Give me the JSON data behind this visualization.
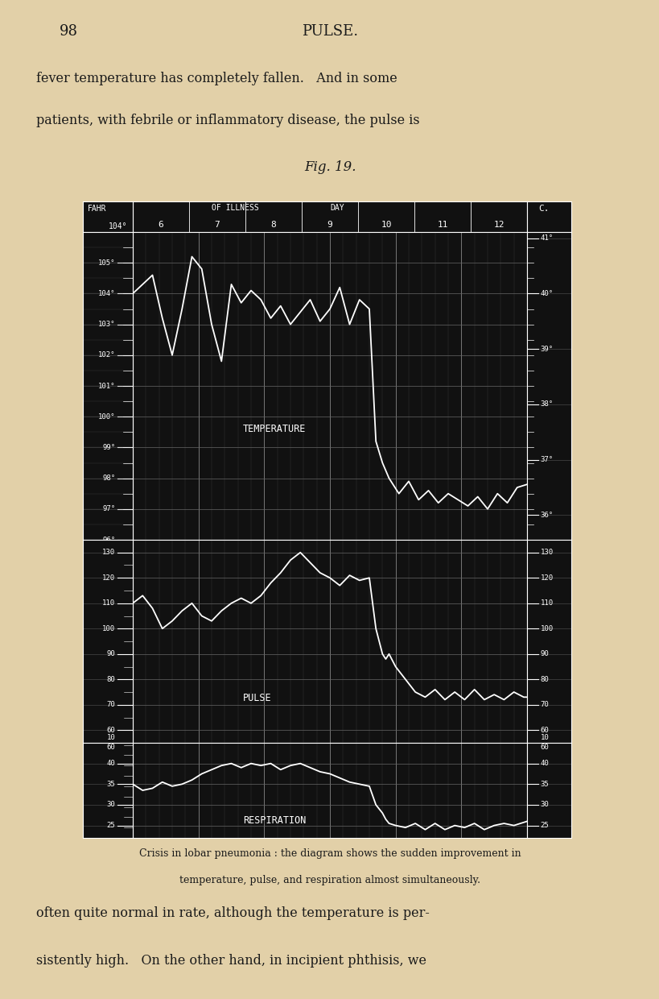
{
  "page_bg": "#e2d0a8",
  "chart_bg": "#111111",
  "line_color": "#ffffff",
  "text_color_page": "#1a1a1a",
  "page_number": "98",
  "page_header": "PULSE.",
  "fig_title": "Fig. 19.",
  "caption_line1": "Crisis in lobar pneumonia : the diagram shows the sudden improvement in",
  "caption_line2": "temperature, pulse, and respiration almost simultaneously.",
  "body_text1": "fever temperature has completely fallen.   And in some",
  "body_text2": "patients, with febrile or inflammatory disease, the pulse is",
  "body_text3": "often quite normal in rate, although the temperature is per-",
  "body_text4": "sistently high.   On the other hand, in incipient phthisis, we",
  "col_labels": [
    "6",
    "7",
    "8",
    "9",
    "10",
    "11",
    "12"
  ],
  "col_header": "DAY  OF ILLNESS",
  "fahr_label": "FAHR",
  "fahr_104": "104°",
  "c_label": "C.",
  "temp_label": "TEMPERATURE",
  "pulse_label": "PULSE",
  "resp_label": "RESPIRATION",
  "temp_yticks": [
    96,
    97,
    98,
    99,
    100,
    101,
    102,
    103,
    104,
    105
  ],
  "temp_ylabels": [
    "96°",
    "97°",
    "98°",
    "99°",
    "100°",
    "101°",
    "102°",
    "103°",
    "104°",
    "105°"
  ],
  "temp_c_ticks": [
    96.8,
    98.6,
    100.4,
    102.2,
    104.0,
    105.8
  ],
  "temp_c_labels": [
    "36°",
    "37°",
    "38°",
    "39°",
    "40°",
    "41°"
  ],
  "pulse_yticks": [
    60,
    70,
    80,
    90,
    100,
    110,
    120,
    130
  ],
  "pulse_ylabels": [
    "60",
    "70",
    "80",
    "90",
    "100",
    "110",
    "120",
    "130"
  ],
  "resp_yticks": [
    25,
    30,
    35,
    40
  ],
  "resp_ylabels": [
    "25",
    "30",
    "35",
    "40"
  ],
  "resp_extra_ticks": [
    10,
    60
  ],
  "temp_data_x": [
    6.0,
    6.15,
    6.3,
    6.45,
    6.6,
    6.75,
    6.9,
    7.05,
    7.2,
    7.35,
    7.5,
    7.65,
    7.8,
    7.95,
    8.1,
    8.25,
    8.4,
    8.55,
    8.7,
    8.85,
    9.0,
    9.15,
    9.3,
    9.45,
    9.6,
    9.7,
    9.8,
    9.9,
    10.05,
    10.2,
    10.35,
    10.5,
    10.65,
    10.8,
    10.95,
    11.1,
    11.25,
    11.4,
    11.55,
    11.7,
    11.85,
    12.0
  ],
  "temp_data_y": [
    104.0,
    104.3,
    104.6,
    103.2,
    102.0,
    103.5,
    105.2,
    104.8,
    103.0,
    101.8,
    104.3,
    103.7,
    104.1,
    103.8,
    103.2,
    103.6,
    103.0,
    103.4,
    103.8,
    103.1,
    103.5,
    104.2,
    103.0,
    103.8,
    103.5,
    99.2,
    98.5,
    98.0,
    97.5,
    97.9,
    97.3,
    97.6,
    97.2,
    97.5,
    97.3,
    97.1,
    97.4,
    97.0,
    97.5,
    97.2,
    97.7,
    97.8
  ],
  "pulse_data_x": [
    6.0,
    6.15,
    6.3,
    6.45,
    6.6,
    6.75,
    6.9,
    7.05,
    7.2,
    7.35,
    7.5,
    7.65,
    7.8,
    7.95,
    8.1,
    8.25,
    8.4,
    8.55,
    8.7,
    8.85,
    9.0,
    9.15,
    9.3,
    9.45,
    9.6,
    9.7,
    9.8,
    9.85,
    9.9,
    10.0,
    10.15,
    10.3,
    10.45,
    10.6,
    10.75,
    10.9,
    11.05,
    11.2,
    11.35,
    11.5,
    11.65,
    11.8,
    11.95,
    12.0
  ],
  "pulse_data_y": [
    110.0,
    113.0,
    108.0,
    100.0,
    103.0,
    107.0,
    110.0,
    105.0,
    103.0,
    107.0,
    110.0,
    112.0,
    110.0,
    113.0,
    118.0,
    122.0,
    127.0,
    130.0,
    126.0,
    122.0,
    120.0,
    117.0,
    121.0,
    119.0,
    120.0,
    100.0,
    90.0,
    88.0,
    90.0,
    85.0,
    80.0,
    75.0,
    73.0,
    76.0,
    72.0,
    75.0,
    72.0,
    76.0,
    72.0,
    74.0,
    72.0,
    75.0,
    73.0,
    73.0
  ],
  "resp_data_x": [
    6.0,
    6.15,
    6.3,
    6.45,
    6.6,
    6.75,
    6.9,
    7.05,
    7.2,
    7.35,
    7.5,
    7.65,
    7.8,
    7.95,
    8.1,
    8.25,
    8.4,
    8.55,
    8.7,
    8.85,
    9.0,
    9.15,
    9.3,
    9.45,
    9.6,
    9.7,
    9.8,
    9.85,
    9.9,
    10.0,
    10.15,
    10.3,
    10.45,
    10.6,
    10.75,
    10.9,
    11.05,
    11.2,
    11.35,
    11.5,
    11.65,
    11.8,
    12.0
  ],
  "resp_data_y": [
    35.0,
    33.5,
    34.0,
    35.5,
    34.5,
    35.0,
    36.0,
    37.5,
    38.5,
    39.5,
    40.0,
    39.0,
    40.0,
    39.5,
    40.0,
    38.5,
    39.5,
    40.0,
    39.0,
    38.0,
    37.5,
    36.5,
    35.5,
    35.0,
    34.5,
    30.0,
    28.0,
    26.5,
    25.5,
    25.0,
    24.5,
    25.5,
    24.0,
    25.5,
    24.0,
    25.0,
    24.5,
    25.5,
    24.0,
    25.0,
    25.5,
    25.0,
    26.0
  ]
}
